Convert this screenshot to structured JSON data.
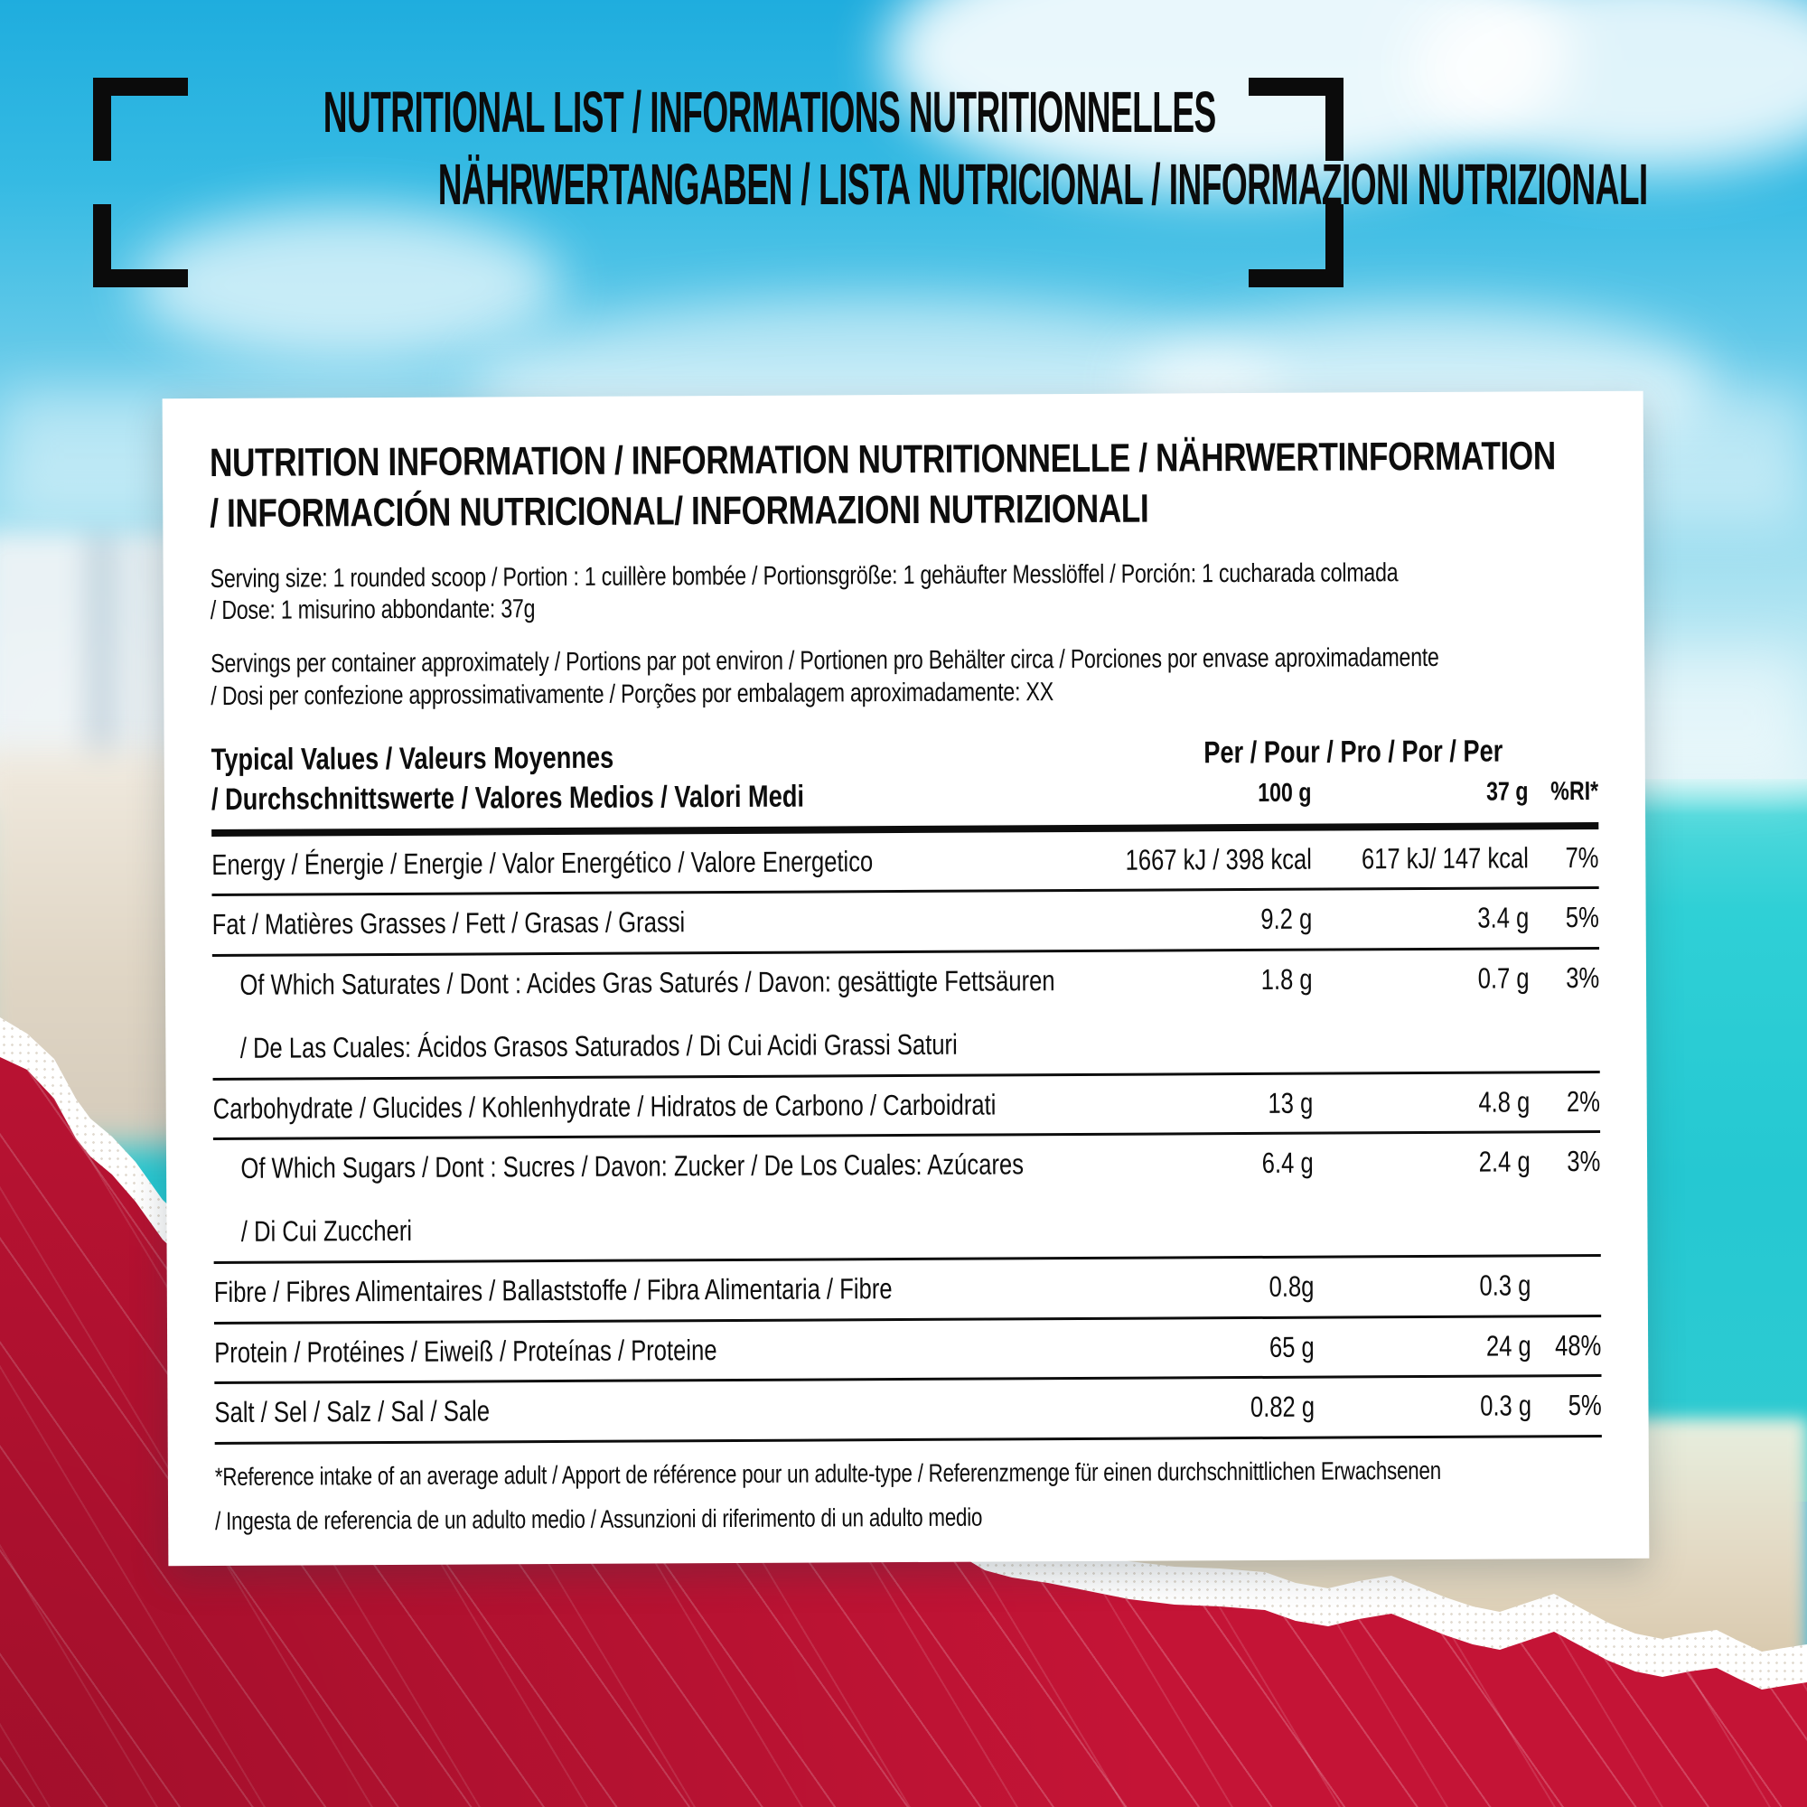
{
  "colors": {
    "accent_red": "#c41436",
    "sky_blue": "#25b1df",
    "sea_turquoise": "#2fd0d6",
    "sand": "#d8c8b0",
    "card_bg": "#ffffff",
    "text": "#0d0d0d"
  },
  "header": {
    "line1": "NUTRITIONAL LIST / INFORMATIONS NUTRITIONNELLES",
    "line2": "NÄHRWERTANGABEN / LISTA NUTRICIONAL / INFORMAZIONI NUTRIZIONALI"
  },
  "card": {
    "title_line1": "NUTRITION INFORMATION / INFORMATION NUTRITIONNELLE / NÄHRWERTINFORMATION",
    "title_line2": "/ INFORMACIÓN NUTRICIONAL/ INFORMAZIONI NUTRIZIONALI",
    "serving_size_line1": "Serving size: 1 rounded scoop / Portion : 1 cuillère bombée / Portionsgröße: 1 gehäufter Messlöffel / Porción: 1 cucharada  colmada",
    "serving_size_line2": "/ Dose: 1 misurino abbondante: 37g",
    "servings_line1": "Servings per container approximately / Portions par pot environ / Portionen pro Behälter circa / Porciones por envase aproximadamente",
    "servings_line2": "/ Dosi per confezione approssimativamente / Porções por embalagem aproximadamente: XX",
    "table": {
      "header": {
        "typical_values_line1": "Typical Values / Valeurs Moyennes",
        "typical_values_line2": "/ Durchschnittswerte / Valores Medios / Valori Medi",
        "per_label": "Per / Pour / Pro / Por / Per",
        "col_100g": "100 g",
        "col_37g": "37 g",
        "col_ri": "%RI*"
      },
      "rows": [
        {
          "label": "Energy / Énergie / Energie / Valor Energético / Valore Energetico",
          "label2": "",
          "per100": "1667 kJ / 398 kcal",
          "per37": "617 kJ/ 147 kcal",
          "ri": "7%",
          "indent": false
        },
        {
          "label": "Fat / Matières Grasses / Fett / Grasas / Grassi",
          "label2": "",
          "per100": "9.2 g",
          "per37": "3.4 g",
          "ri": "5%",
          "indent": false
        },
        {
          "label": "Of Which Saturates / Dont : Acides Gras Saturés / Davon: gesättigte Fettsäuren",
          "label2": "/ De Las Cuales: Ácidos Grasos Saturados / Di Cui Acidi Grassi Saturi",
          "per100": "1.8 g",
          "per37": "0.7 g",
          "ri": "3%",
          "indent": true
        },
        {
          "label": "Carbohydrate / Glucides / Kohlenhydrate / Hidratos de Carbono / Carboidrati",
          "label2": "",
          "per100": "13 g",
          "per37": "4.8 g",
          "ri": "2%",
          "indent": false
        },
        {
          "label": "Of Which Sugars / Dont : Sucres / Davon: Zucker / De Los Cuales: Azúcares",
          "label2": "/ Di Cui Zuccheri",
          "per100": "6.4 g",
          "per37": "2.4 g",
          "ri": "3%",
          "indent": true
        },
        {
          "label": "Fibre / Fibres Alimentaires / Ballaststoffe / Fibra Alimentaria / Fibre",
          "label2": "",
          "per100": "0.8g",
          "per37": "0.3 g",
          "ri": "",
          "indent": false
        },
        {
          "label": "Protein / Protéines / Eiweiß / Proteínas / Proteine",
          "label2": "",
          "per100": "65 g",
          "per37": "24 g",
          "ri": "48%",
          "indent": false
        },
        {
          "label": "Salt / Sel / Salz / Sal / Sale",
          "label2": "",
          "per100": "0.82 g",
          "per37": "0.3 g",
          "ri": "5%",
          "indent": false
        }
      ]
    },
    "footnote_line1": "*Reference intake of an average adult / Apport de référence pour un adulte-type / Referenzmenge für einen durchschnittlichen Erwachsenen",
    "footnote_line2": "/ Ingesta de referencia de un adulto medio / Assunzioni di riferimento di un adulto medio"
  }
}
